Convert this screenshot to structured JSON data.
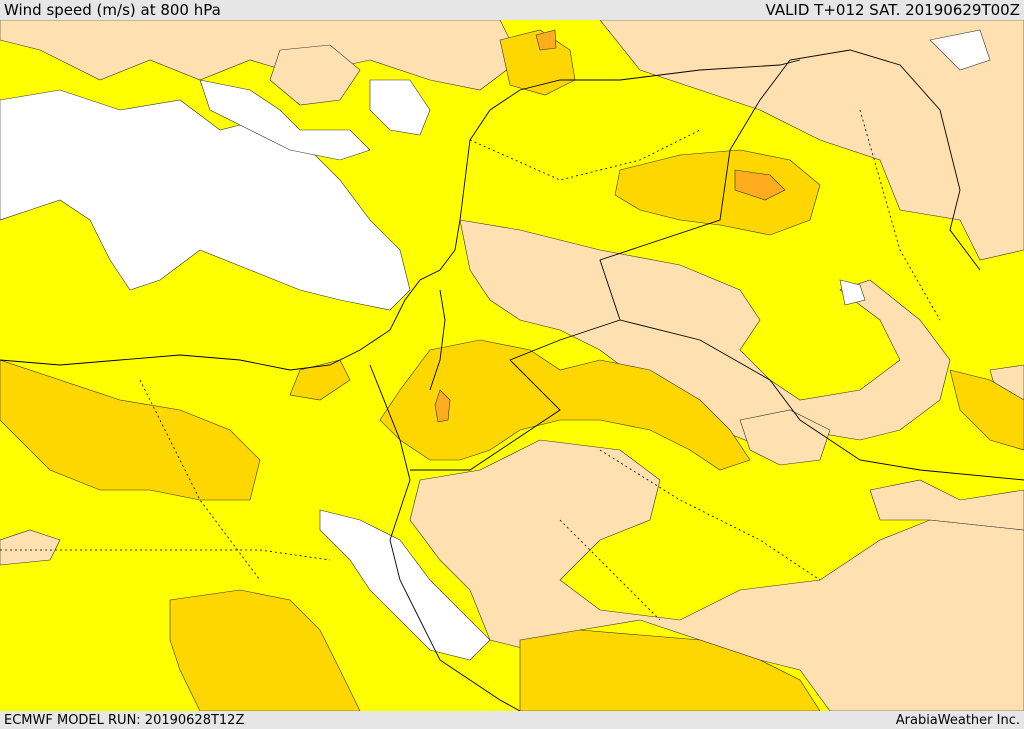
{
  "header": {
    "title": "Wind speed (m/s) at 800 hPa",
    "valid": "VALID T+012 SAT. 20190629T00Z"
  },
  "footer": {
    "model_run": "ECMWF MODEL RUN: 20190628T12Z",
    "credit": "ArabiaWeather Inc."
  },
  "colors": {
    "calm": "#ffffff",
    "light": "#ffe0b0",
    "moderate": "#ffff00",
    "fresh": "#ffd700",
    "strong": "#ffad1f",
    "border": "#000000"
  }
}
